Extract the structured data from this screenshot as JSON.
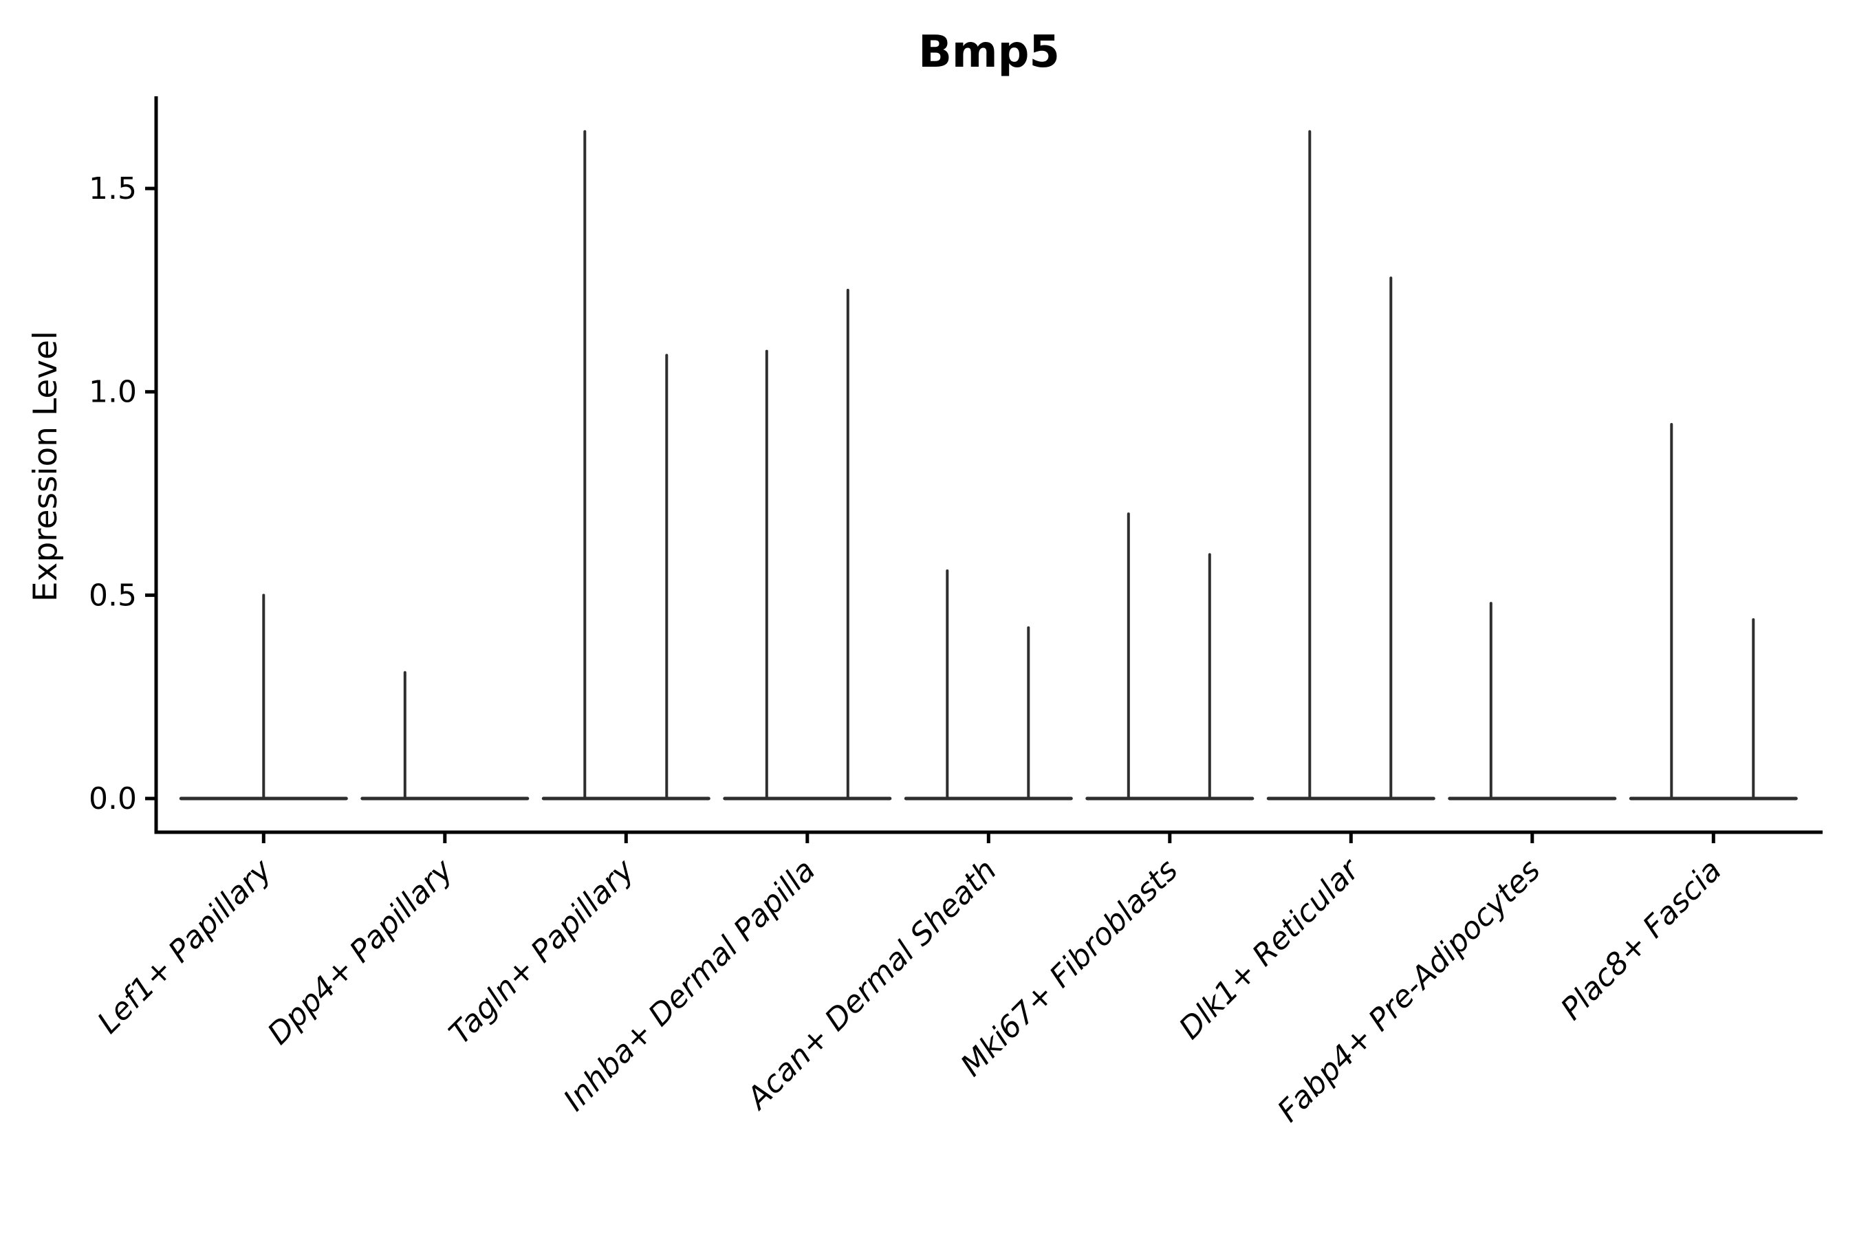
{
  "figure": {
    "title": "Bmp5"
  },
  "chart_data": {
    "type": "violin",
    "title": "Bmp5",
    "xlabel": "",
    "ylabel": "Expression Level",
    "ylim": [
      -0.08,
      1.73
    ],
    "yticks": [
      0.0,
      0.5,
      1.0,
      1.5
    ],
    "ytick_labels": [
      "0.0",
      "0.5",
      "1.0",
      "1.5"
    ],
    "grid": false,
    "legend": null,
    "categories": [
      "Lef1+ Papillary",
      "Dpp4+ Papillary",
      "Tagln+ Papillary",
      "Inhba+ Dermal Papilla",
      "Acan+ Dermal Sheath",
      "Mki67+ Fibroblasts",
      "Dlk1+ Reticular",
      "Fabp4+ Pre-Adipocytes",
      "Plac8+ Fascia"
    ],
    "violins": [
      {
        "category": "Lef1+ Papillary",
        "base_value": 0.0,
        "base_half_width": 120,
        "spikes": [
          {
            "dx": 0,
            "value": 0.5
          }
        ]
      },
      {
        "category": "Dpp4+ Papillary",
        "base_value": 0.0,
        "base_half_width": 120,
        "spikes": [
          {
            "dx": -58,
            "value": 0.31
          }
        ]
      },
      {
        "category": "Tagln+ Papillary",
        "base_value": 0.0,
        "base_half_width": 120,
        "spikes": [
          {
            "dx": -60,
            "value": 1.64
          },
          {
            "dx": 59,
            "value": 1.09
          }
        ]
      },
      {
        "category": "Inhba+ Dermal Papilla",
        "base_value": 0.0,
        "base_half_width": 120,
        "spikes": [
          {
            "dx": -59,
            "value": 1.1
          },
          {
            "dx": 59,
            "value": 1.25
          }
        ]
      },
      {
        "category": "Acan+ Dermal Sheath",
        "base_value": 0.0,
        "base_half_width": 120,
        "spikes": [
          {
            "dx": -60,
            "value": 0.56
          },
          {
            "dx": 58,
            "value": 0.42
          }
        ]
      },
      {
        "category": "Mki67+ Fibroblasts",
        "base_value": 0.0,
        "base_half_width": 120,
        "spikes": [
          {
            "dx": -60,
            "value": 0.7
          },
          {
            "dx": 58,
            "value": 0.6
          }
        ]
      },
      {
        "category": "Dlk1+ Reticular",
        "base_value": 0.0,
        "base_half_width": 120,
        "spikes": [
          {
            "dx": -60,
            "value": 1.64
          },
          {
            "dx": 58,
            "value": 1.28
          }
        ]
      },
      {
        "category": "Fabp4+ Pre-Adipocytes",
        "base_value": 0.0,
        "base_half_width": 120,
        "spikes": [
          {
            "dx": -60,
            "value": 0.48
          }
        ]
      },
      {
        "category": "Plac8+ Fascia",
        "base_value": 0.0,
        "base_half_width": 120,
        "spikes": [
          {
            "dx": -61,
            "value": 0.92
          },
          {
            "dx": 58,
            "value": 0.44
          }
        ]
      }
    ],
    "colors": {
      "violin_line": "#2e2e2e",
      "axis": "#000000",
      "text": "#000000",
      "background": "#ffffff"
    },
    "style_notes": {
      "x_tick_label_style": "italic",
      "x_tick_label_rotation_deg": 45,
      "title_weight": "bold",
      "spines_shown": [
        "left",
        "bottom"
      ]
    }
  }
}
